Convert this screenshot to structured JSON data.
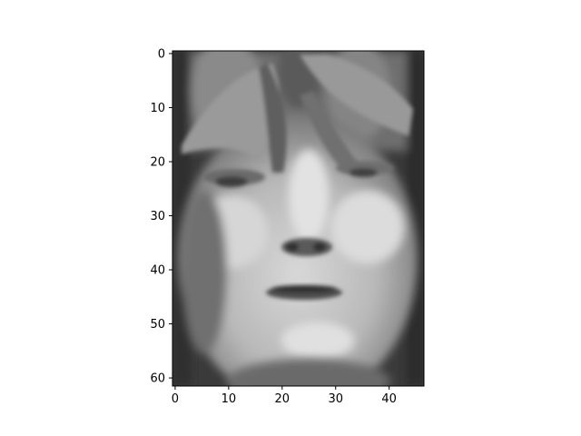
{
  "image": {
    "subject": "face-photo-grayscale",
    "colormap": "gray",
    "axes": {
      "x_ticks": [
        "0",
        "10",
        "20",
        "30",
        "40"
      ],
      "y_ticks": [
        "0",
        "10",
        "20",
        "30",
        "40",
        "50",
        "60"
      ],
      "x_range": [
        -0.5,
        46.5
      ],
      "y_range": [
        -0.5,
        61.5
      ]
    }
  }
}
